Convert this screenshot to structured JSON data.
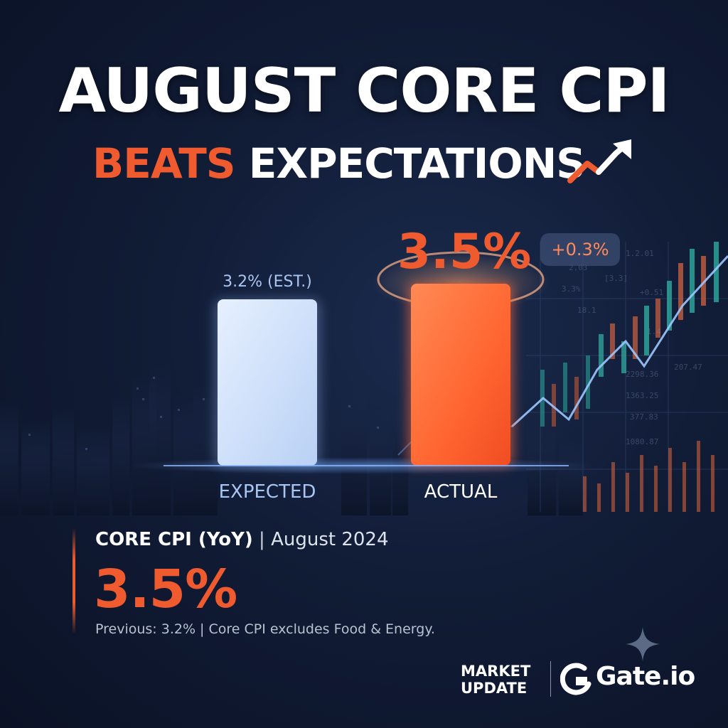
{
  "header": {
    "title": "AUGUST CORE CPI",
    "subtitle_accent": "BEATS",
    "subtitle_rest": "EXPECTATIONS",
    "trend_icon": "trend-up-arrow-icon"
  },
  "colors": {
    "accent": "#ef5a2f",
    "expected_bar": "#cfe0fb",
    "actual_bar": "#ff6a3a",
    "expected_label": "#a9c6f2",
    "background": "#111c36"
  },
  "chart_data": {
    "type": "bar",
    "categories": [
      "EXPECTED",
      "ACTUAL"
    ],
    "values": [
      3.2,
      3.5
    ],
    "unit": "%",
    "data_labels": [
      "3.2% (EST.)",
      "3.5%"
    ],
    "difference_label": "+0.3%",
    "title": "",
    "xlabel": "",
    "ylabel": "",
    "ylim": [
      0,
      4
    ]
  },
  "info": {
    "heading_bold": "CORE CPI (YoY)",
    "heading_separator": "|",
    "heading_light": "August 2024",
    "value": "3.5%",
    "note": "Previous: 3.2% | Core CPI excludes Food & Energy."
  },
  "footer": {
    "market_line1": "MARKET",
    "market_line2": "UPDATE",
    "brand_name": "Gate.io",
    "brand_icon": "gate-logo-icon",
    "sparkle_icon": "sparkle-icon"
  }
}
